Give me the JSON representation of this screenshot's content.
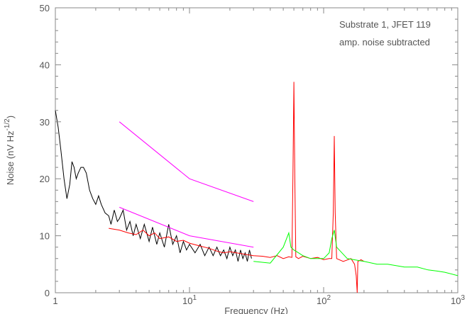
{
  "chart_data": {
    "type": "line",
    "title": "",
    "xlabel": "Frequency (Hz)",
    "ylabel_base": "Noise (nV Hz",
    "ylabel_exp": "-1/2",
    "ylabel_close": ")",
    "x_scale": "log",
    "xlim": [
      1,
      1000
    ],
    "ylim": [
      0,
      50
    ],
    "y_ticks": [
      0,
      10,
      20,
      30,
      40,
      50
    ],
    "x_ticks": [
      {
        "value": 1,
        "base": "1",
        "exp": ""
      },
      {
        "value": 10,
        "base": "10",
        "exp": "1"
      },
      {
        "value": 100,
        "base": "10",
        "exp": "2"
      },
      {
        "value": 1000,
        "base": "10",
        "exp": "3"
      }
    ],
    "annotations": [
      "Substrate 1, JFET 119",
      "amp. noise subtracted"
    ],
    "grid": false,
    "series": [
      {
        "color": "#000000",
        "points": [
          [
            1.0,
            32
          ],
          [
            1.05,
            29
          ],
          [
            1.1,
            25
          ],
          [
            1.16,
            20
          ],
          [
            1.22,
            16.5
          ],
          [
            1.28,
            19
          ],
          [
            1.33,
            23
          ],
          [
            1.38,
            22
          ],
          [
            1.43,
            20
          ],
          [
            1.48,
            21
          ],
          [
            1.55,
            22
          ],
          [
            1.62,
            22
          ],
          [
            1.7,
            21
          ],
          [
            1.8,
            18
          ],
          [
            1.9,
            16.5
          ],
          [
            2.0,
            15.5
          ],
          [
            2.1,
            17
          ],
          [
            2.2,
            15.5
          ],
          [
            2.35,
            14
          ],
          [
            2.5,
            13.5
          ],
          [
            2.6,
            12
          ],
          [
            2.75,
            14.5
          ],
          [
            2.9,
            12.5
          ],
          [
            3.0,
            13
          ],
          [
            3.2,
            14.5
          ],
          [
            3.4,
            11
          ],
          [
            3.6,
            12.5
          ],
          [
            3.8,
            10
          ],
          [
            4.0,
            12
          ],
          [
            4.3,
            9.5
          ],
          [
            4.6,
            12
          ],
          [
            5.0,
            9
          ],
          [
            5.3,
            11.5
          ],
          [
            5.7,
            8.5
          ],
          [
            6.0,
            10.5
          ],
          [
            6.5,
            8
          ],
          [
            7.0,
            12
          ],
          [
            7.5,
            8.5
          ],
          [
            8.0,
            10
          ],
          [
            8.5,
            7
          ],
          [
            9.0,
            9
          ],
          [
            9.5,
            7.5
          ],
          [
            10,
            8.5
          ],
          [
            11,
            7
          ],
          [
            12,
            8.5
          ],
          [
            13,
            6.5
          ],
          [
            14,
            8
          ],
          [
            15,
            6.5
          ],
          [
            16,
            8
          ],
          [
            17,
            6.5
          ],
          [
            18,
            7.5
          ],
          [
            19,
            6
          ],
          [
            20,
            8
          ],
          [
            21,
            6.5
          ],
          [
            22,
            7.5
          ],
          [
            23,
            5.5
          ],
          [
            24,
            7.5
          ],
          [
            25,
            6
          ],
          [
            26,
            7
          ],
          [
            27,
            5.5
          ],
          [
            28,
            7.5
          ],
          [
            29,
            6
          ]
        ]
      },
      {
        "color": "#ff0000",
        "points": [
          [
            2.5,
            11.3
          ],
          [
            3.0,
            11.0
          ],
          [
            3.5,
            10.5
          ],
          [
            4.0,
            10.2
          ],
          [
            4.5,
            11.0
          ],
          [
            5.0,
            10.0
          ],
          [
            5.5,
            10.5
          ],
          [
            6.0,
            9.5
          ],
          [
            7.0,
            9.8
          ],
          [
            8.0,
            9.0
          ],
          [
            9.0,
            9.2
          ],
          [
            10,
            8.7
          ],
          [
            12,
            8.2
          ],
          [
            14,
            7.8
          ],
          [
            16,
            7.3
          ],
          [
            18,
            7.0
          ],
          [
            20,
            7.2
          ],
          [
            25,
            6.8
          ],
          [
            30,
            6.5
          ],
          [
            35,
            6.4
          ],
          [
            40,
            6.2
          ],
          [
            45,
            6.5
          ],
          [
            50,
            6.0
          ],
          [
            55,
            6.3
          ],
          [
            58,
            6.2
          ],
          [
            59,
            20
          ],
          [
            60,
            37
          ],
          [
            61,
            20
          ],
          [
            62,
            6.3
          ],
          [
            65,
            6.0
          ],
          [
            70,
            6.4
          ],
          [
            80,
            6.0
          ],
          [
            90,
            6.2
          ],
          [
            100,
            5.8
          ],
          [
            110,
            6.0
          ],
          [
            115,
            6.0
          ],
          [
            118,
            14
          ],
          [
            120,
            27.5
          ],
          [
            122,
            14
          ],
          [
            125,
            6.0
          ],
          [
            140,
            5.5
          ],
          [
            160,
            6.0
          ],
          [
            170,
            5.0
          ],
          [
            175,
            3.0
          ],
          [
            178,
            0.0
          ],
          [
            180,
            5.5
          ],
          [
            190,
            5.8
          ],
          [
            200,
            5.5
          ]
        ]
      },
      {
        "color": "#00ff00",
        "points": [
          [
            30,
            5.5
          ],
          [
            40,
            5.2
          ],
          [
            50,
            8.0
          ],
          [
            55,
            10.5
          ],
          [
            57,
            8.0
          ],
          [
            60,
            7.5
          ],
          [
            65,
            7.0
          ],
          [
            70,
            6.5
          ],
          [
            80,
            6.0
          ],
          [
            100,
            6.0
          ],
          [
            110,
            7.0
          ],
          [
            115,
            9.5
          ],
          [
            120,
            11.0
          ],
          [
            125,
            8.0
          ],
          [
            150,
            6.0
          ],
          [
            200,
            5.5
          ],
          [
            250,
            5.0
          ],
          [
            300,
            5.0
          ],
          [
            400,
            4.5
          ],
          [
            500,
            4.5
          ],
          [
            600,
            4.0
          ],
          [
            700,
            3.8
          ],
          [
            800,
            3.6
          ],
          [
            1000,
            3.0
          ]
        ]
      },
      {
        "color": "#ff00ff",
        "points": [
          [
            3,
            30
          ],
          [
            10,
            20
          ],
          [
            30,
            16
          ]
        ]
      },
      {
        "color": "#ff00ff",
        "points": [
          [
            3,
            15
          ],
          [
            10,
            10
          ],
          [
            30,
            8
          ]
        ]
      }
    ]
  }
}
